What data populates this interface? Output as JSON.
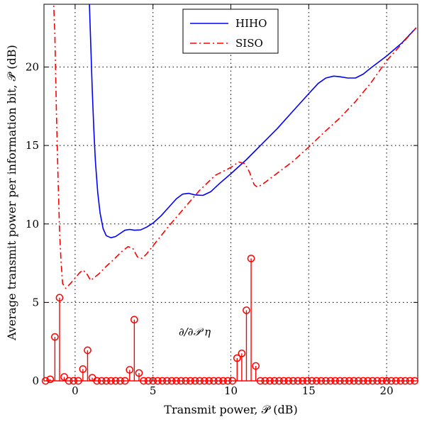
{
  "chart_data": {
    "type": "line",
    "xlabel": "Transmit power, 𝒫 (dB)",
    "ylabel": "Average transmit power per information bit, 𝒫̄ (dB)",
    "xlim": [
      -2,
      22
    ],
    "ylim": [
      0,
      24
    ],
    "x_ticks": [
      0,
      5,
      10,
      15,
      20
    ],
    "y_ticks": [
      0,
      5,
      10,
      15,
      20
    ],
    "grid": true,
    "grid_style": "dotted",
    "legend_position": "top-center",
    "annotation": "∂/∂𝒫 η",
    "series": [
      {
        "name": "HIHO",
        "style": "solid",
        "color": "#0000ff",
        "points": [
          [
            0.9,
            24.5
          ],
          [
            1.0,
            21.5
          ],
          [
            1.1,
            18.5
          ],
          [
            1.2,
            16.0
          ],
          [
            1.3,
            14.0
          ],
          [
            1.45,
            12.0
          ],
          [
            1.6,
            10.7
          ],
          [
            1.8,
            9.7
          ],
          [
            2.0,
            9.25
          ],
          [
            2.3,
            9.12
          ],
          [
            2.6,
            9.2
          ],
          [
            2.9,
            9.4
          ],
          [
            3.2,
            9.6
          ],
          [
            3.5,
            9.65
          ],
          [
            3.8,
            9.6
          ],
          [
            4.2,
            9.62
          ],
          [
            4.6,
            9.8
          ],
          [
            5.0,
            10.05
          ],
          [
            5.5,
            10.5
          ],
          [
            6.0,
            11.05
          ],
          [
            6.5,
            11.6
          ],
          [
            6.9,
            11.9
          ],
          [
            7.3,
            11.95
          ],
          [
            7.7,
            11.85
          ],
          [
            8.2,
            11.82
          ],
          [
            8.7,
            12.05
          ],
          [
            9.3,
            12.6
          ],
          [
            10.0,
            13.2
          ],
          [
            11.0,
            14.1
          ],
          [
            12.0,
            15.1
          ],
          [
            13.0,
            16.1
          ],
          [
            14.0,
            17.2
          ],
          [
            15.0,
            18.3
          ],
          [
            15.6,
            18.95
          ],
          [
            16.1,
            19.3
          ],
          [
            16.6,
            19.42
          ],
          [
            17.0,
            19.38
          ],
          [
            17.5,
            19.3
          ],
          [
            18.0,
            19.3
          ],
          [
            18.5,
            19.55
          ],
          [
            19.0,
            19.95
          ],
          [
            20.0,
            20.7
          ],
          [
            21.0,
            21.55
          ],
          [
            21.9,
            22.5
          ]
        ]
      },
      {
        "name": "SISO",
        "style": "dash-dot",
        "color": "#ff0000",
        "points": [
          [
            -1.4,
            24.5
          ],
          [
            -1.3,
            22.0
          ],
          [
            -1.2,
            17.0
          ],
          [
            -1.1,
            13.0
          ],
          [
            -1.0,
            9.5
          ],
          [
            -0.9,
            7.5
          ],
          [
            -0.8,
            6.2
          ],
          [
            -0.6,
            5.9
          ],
          [
            -0.3,
            6.2
          ],
          [
            0.0,
            6.55
          ],
          [
            0.3,
            6.9
          ],
          [
            0.5,
            7.05
          ],
          [
            0.7,
            6.9
          ],
          [
            1.0,
            6.4
          ],
          [
            1.5,
            6.8
          ],
          [
            2.0,
            7.3
          ],
          [
            2.5,
            7.75
          ],
          [
            3.0,
            8.25
          ],
          [
            3.4,
            8.55
          ],
          [
            3.7,
            8.45
          ],
          [
            4.0,
            7.9
          ],
          [
            4.3,
            7.8
          ],
          [
            4.6,
            8.1
          ],
          [
            5.0,
            8.6
          ],
          [
            6.0,
            9.85
          ],
          [
            7.0,
            11.0
          ],
          [
            8.0,
            12.15
          ],
          [
            9.0,
            13.1
          ],
          [
            10.0,
            13.6
          ],
          [
            10.5,
            13.95
          ],
          [
            10.9,
            13.85
          ],
          [
            11.2,
            13.3
          ],
          [
            11.5,
            12.5
          ],
          [
            11.7,
            12.35
          ],
          [
            12.0,
            12.5
          ],
          [
            13.0,
            13.25
          ],
          [
            14.0,
            14.0
          ],
          [
            15.0,
            14.9
          ],
          [
            16.0,
            15.85
          ],
          [
            17.0,
            16.75
          ],
          [
            18.0,
            17.8
          ],
          [
            19.0,
            19.0
          ],
          [
            20.0,
            20.4
          ],
          [
            21.0,
            21.5
          ],
          [
            21.9,
            22.5
          ]
        ]
      },
      {
        "name": "∂/∂𝒫 η",
        "type": "stem",
        "style": "stem",
        "color": "#ff0000",
        "x": [
          -1.9,
          -1.6,
          -1.3,
          -1.0,
          -0.7,
          -0.4,
          -0.1,
          0.2,
          0.5,
          0.8,
          1.1,
          1.4,
          1.7,
          2.0,
          2.3,
          2.6,
          2.9,
          3.2,
          3.5,
          3.8,
          4.1,
          4.4,
          4.7,
          5.0,
          5.3,
          5.6,
          5.9,
          6.2,
          6.5,
          6.8,
          7.1,
          7.4,
          7.7,
          8.0,
          8.3,
          8.6,
          8.9,
          9.2,
          9.5,
          9.8,
          10.1,
          10.4,
          10.7,
          11.0,
          11.3,
          11.6,
          11.9,
          12.2,
          12.5,
          12.8,
          13.1,
          13.4,
          13.7,
          14.0,
          14.3,
          14.6,
          14.9,
          15.2,
          15.5,
          15.8,
          16.1,
          16.4,
          16.7,
          17.0,
          17.3,
          17.6,
          17.9,
          18.2,
          18.5,
          18.8,
          19.1,
          19.4,
          19.7,
          20.0,
          20.3,
          20.6,
          20.9,
          21.2,
          21.5,
          21.8
        ],
        "values": [
          0,
          0.1,
          2.8,
          5.3,
          0.25,
          0,
          0,
          0,
          0.75,
          1.95,
          0.2,
          0,
          0,
          0,
          0,
          0,
          0,
          0,
          0.7,
          3.9,
          0.5,
          0,
          0,
          0,
          0,
          0,
          0,
          0,
          0,
          0,
          0,
          0,
          0,
          0,
          0,
          0,
          0,
          0,
          0,
          0,
          0,
          1.45,
          1.75,
          4.5,
          7.8,
          0.95,
          0,
          0,
          0,
          0,
          0,
          0,
          0,
          0,
          0,
          0,
          0,
          0,
          0,
          0,
          0,
          0,
          0,
          0,
          0,
          0,
          0,
          0,
          0,
          0,
          0,
          0,
          0,
          0,
          0,
          0,
          0,
          0,
          0,
          0
        ]
      }
    ]
  }
}
